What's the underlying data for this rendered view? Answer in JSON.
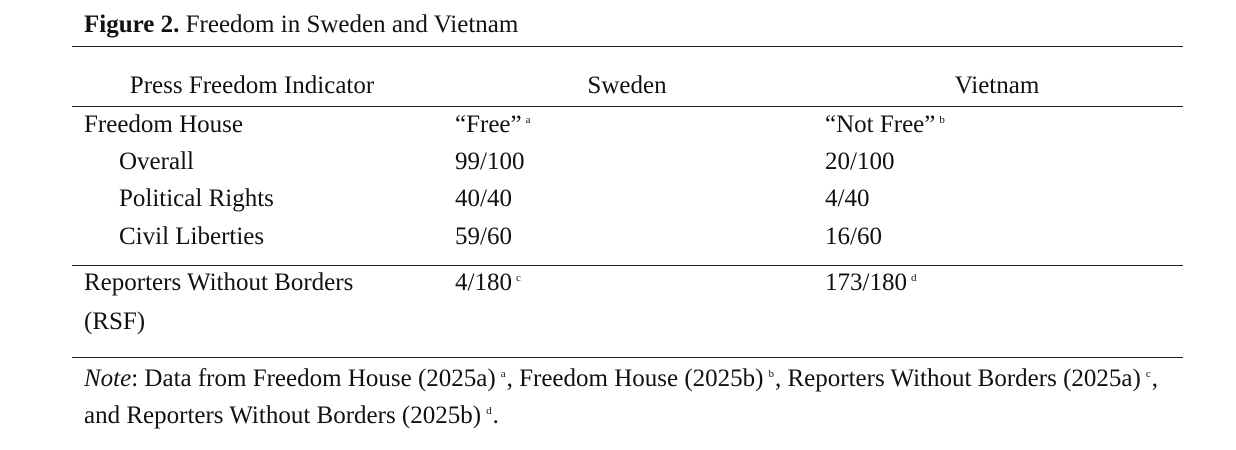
{
  "caption": {
    "label": "Figure 2.",
    "title": "Freedom in Sweden and Vietnam"
  },
  "table": {
    "headers": [
      "Press Freedom Indicator",
      "Sweden",
      "Vietnam"
    ],
    "freedom_house": {
      "label": "Freedom House",
      "sweden": "“Free”",
      "sweden_fn": "a",
      "vietnam": "“Not Free”",
      "vietnam_fn": "b"
    },
    "rows": [
      {
        "label": "Overall",
        "sweden": "99/100",
        "vietnam": "20/100"
      },
      {
        "label": "Political Rights",
        "sweden": "40/40",
        "vietnam": "4/40"
      },
      {
        "label": "Civil Liberties",
        "sweden": "59/60",
        "vietnam": "16/60"
      }
    ],
    "rsf": {
      "label_line1": "Reporters Without Borders",
      "label_line2": "(RSF)",
      "sweden": "4/180",
      "sweden_fn": "c",
      "vietnam": "173/180",
      "vietnam_fn": "d"
    }
  },
  "note": {
    "label": "Note",
    "intro": ": Data from Freedom House (2025a)",
    "fn_a": "a",
    "part2": ", Freedom House (2025b)",
    "fn_b": "b",
    "part3": ", Reporters Without Borders (2025a)",
    "fn_c": "c",
    "part4": ", and Reporters Without Borders (2025b)",
    "fn_d": "d",
    "end": "."
  }
}
